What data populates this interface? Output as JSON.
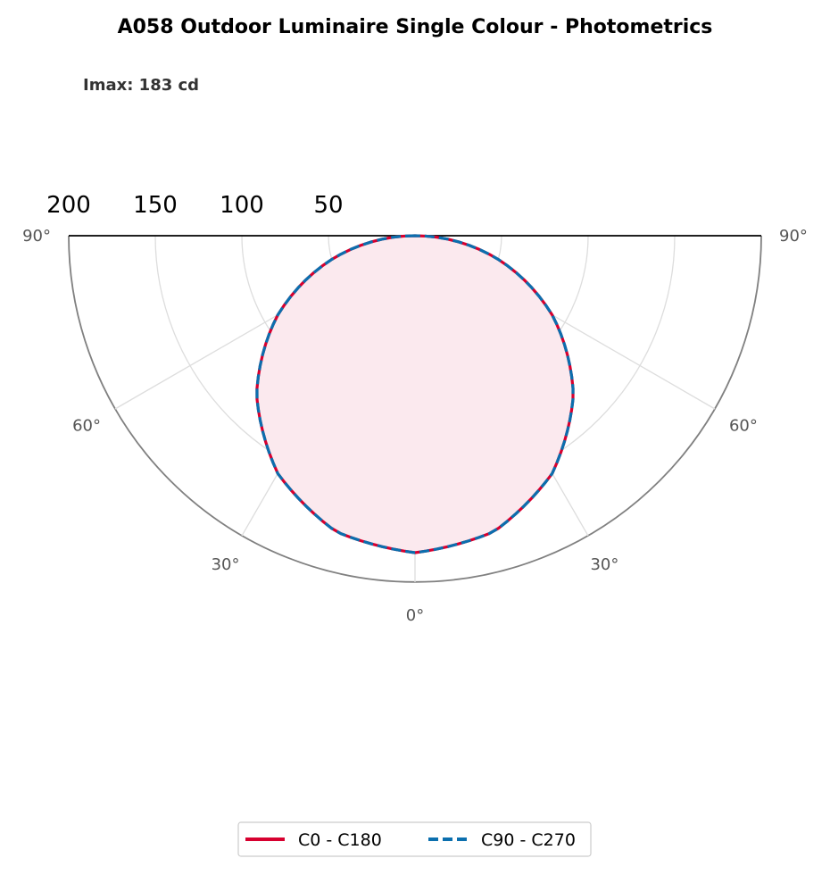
{
  "chart_data": {
    "type": "polar",
    "title": "A058 Outdoor Luminaire Single Colour - Photometrics",
    "subtitle": "Imax: 183 cd",
    "radial_ticks": [
      200,
      150,
      100,
      50
    ],
    "rmax": 200,
    "angle_ticks": [
      {
        "angle": -90,
        "label": "90°"
      },
      {
        "angle": -60,
        "label": "60°"
      },
      {
        "angle": -30,
        "label": "30°"
      },
      {
        "angle": 0,
        "label": "0°"
      },
      {
        "angle": 30,
        "label": "30°"
      },
      {
        "angle": 60,
        "label": "60°"
      },
      {
        "angle": 90,
        "label": "90°"
      }
    ],
    "grid": true,
    "legend_placement": "bottom-center",
    "gamma_deg": [
      -90,
      -75,
      -60,
      -45,
      -30,
      -15,
      0,
      15,
      30,
      45,
      60,
      75,
      90
    ],
    "series": [
      {
        "name": "C0 - C180",
        "color": "#d7002f",
        "style": "solid",
        "values": [
          0,
          47.4,
          91.5,
          129.4,
          158.5,
          176.8,
          183,
          176.8,
          158.5,
          129.4,
          91.5,
          47.4,
          0
        ]
      },
      {
        "name": "C90 - C270",
        "color": "#0b6fae",
        "style": "dashed",
        "values": [
          0,
          47.4,
          91.5,
          129.4,
          158.5,
          176.8,
          183,
          176.8,
          158.5,
          129.4,
          91.5,
          47.4,
          0
        ]
      }
    ],
    "fill_color": "#fbe9ee"
  }
}
